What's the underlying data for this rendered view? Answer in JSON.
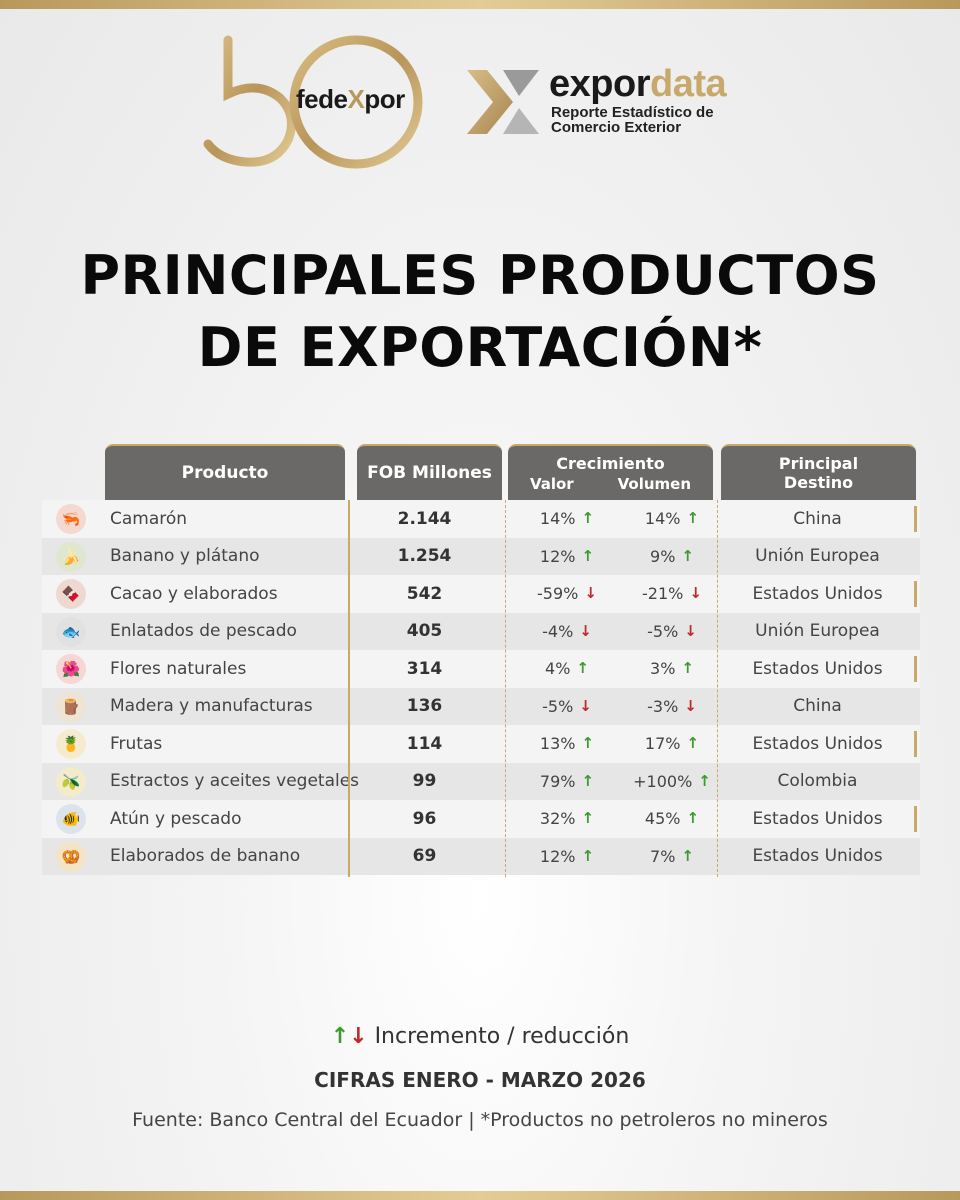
{
  "logos": {
    "fedexpor": {
      "number": "50",
      "part1": "fede",
      "x": "X",
      "part2": "por"
    },
    "expordata": {
      "part1": "expor",
      "part2": "data",
      "subtitle_line1": "Reporte Estadístico de",
      "subtitle_line2": "Comercio Exterior"
    }
  },
  "title": {
    "line1": "PRINCIPALES PRODUCTOS",
    "line2": "DE EXPORTACIÓN*"
  },
  "table": {
    "headers": {
      "producto": "Producto",
      "fob": "FOB Millones",
      "crecimiento": "Crecimiento",
      "valor": "Valor",
      "volumen": "Volumen",
      "destino_line1": "Principal",
      "destino_line2": "Destino"
    },
    "rows": [
      {
        "icon": "shrimp-icon",
        "producto": "Camarón",
        "fob": "2.144",
        "valor": "14%",
        "valor_dir": "up",
        "volumen": "14%",
        "volumen_dir": "up",
        "destino": "China"
      },
      {
        "icon": "banana-icon",
        "producto": "Banano y plátano",
        "fob": "1.254",
        "valor": "12%",
        "valor_dir": "up",
        "volumen": "9%",
        "volumen_dir": "up",
        "destino": "Unión Europea"
      },
      {
        "icon": "cacao-icon",
        "producto": "Cacao y elaborados",
        "fob": "542",
        "valor": "-59%",
        "valor_dir": "down",
        "volumen": "-21%",
        "volumen_dir": "down",
        "destino": "Estados Unidos"
      },
      {
        "icon": "canned-fish-icon",
        "producto": "Enlatados de pescado",
        "fob": "405",
        "valor": "-4%",
        "valor_dir": "down",
        "volumen": "-5%",
        "volumen_dir": "down",
        "destino": "Unión Europea"
      },
      {
        "icon": "flower-icon",
        "producto": "Flores naturales",
        "fob": "314",
        "valor": "4%",
        "valor_dir": "up",
        "volumen": "3%",
        "volumen_dir": "up",
        "destino": "Estados Unidos"
      },
      {
        "icon": "wood-icon",
        "producto": "Madera y manufacturas",
        "fob": "136",
        "valor": "-5%",
        "valor_dir": "down",
        "volumen": "-3%",
        "volumen_dir": "down",
        "destino": "China"
      },
      {
        "icon": "fruit-icon",
        "producto": "Frutas",
        "fob": "114",
        "valor": "13%",
        "valor_dir": "up",
        "volumen": "17%",
        "volumen_dir": "up",
        "destino": "Estados Unidos"
      },
      {
        "icon": "oil-bottle-icon",
        "producto": "Estractos y aceites vegetales",
        "fob": "99",
        "valor": "79%",
        "valor_dir": "up",
        "volumen": "+100%",
        "volumen_dir": "up",
        "destino": "Colombia"
      },
      {
        "icon": "tuna-icon",
        "producto": "Atún y pescado",
        "fob": "96",
        "valor": "32%",
        "valor_dir": "up",
        "volumen": "45%",
        "volumen_dir": "up",
        "destino": "Estados Unidos"
      },
      {
        "icon": "banana-chips-icon",
        "producto": "Elaborados de banano",
        "fob": "69",
        "valor": "12%",
        "valor_dir": "up",
        "volumen": "7%",
        "volumen_dir": "up",
        "destino": "Estados Unidos"
      }
    ]
  },
  "footer": {
    "legend": "Incremento / reducción",
    "cifras": "CIFRAS ENERO - MARZO 2026",
    "fuente": "Fuente: Banco Central del Ecuador | *Productos no petroleros no mineros"
  },
  "colors": {
    "gold": "#c9a968",
    "header_gray": "#6b6968",
    "up": "#3a9b2e",
    "down": "#c0282b"
  }
}
